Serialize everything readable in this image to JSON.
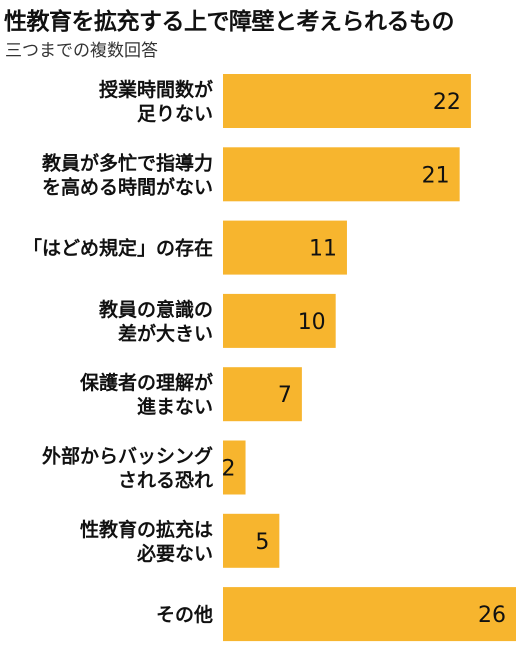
{
  "chart_data": {
    "type": "bar",
    "orientation": "horizontal",
    "title": "性教育を拡充する上で障壁と考えられるもの",
    "subtitle": "三つまでの複数回答",
    "categories": [
      [
        "授業時間数が",
        "足りない"
      ],
      [
        "教員が多忙で指導力",
        "を高める時間がない"
      ],
      [
        "「はどめ規定」の存在"
      ],
      [
        "教員の意識の",
        "差が大きい"
      ],
      [
        "保護者の理解が",
        "進まない"
      ],
      [
        "外部からバッシング",
        "される恐れ"
      ],
      [
        "性教育の拡充は",
        "必要ない"
      ],
      [
        "その他"
      ]
    ],
    "values": [
      22,
      21,
      11,
      10,
      7,
      2,
      5,
      26
    ],
    "value_labels": [
      "22",
      "21",
      "11",
      "10",
      "7",
      "2",
      "5",
      "26"
    ],
    "bar_color": "#f7b52e",
    "grid": false,
    "legend": "none"
  }
}
